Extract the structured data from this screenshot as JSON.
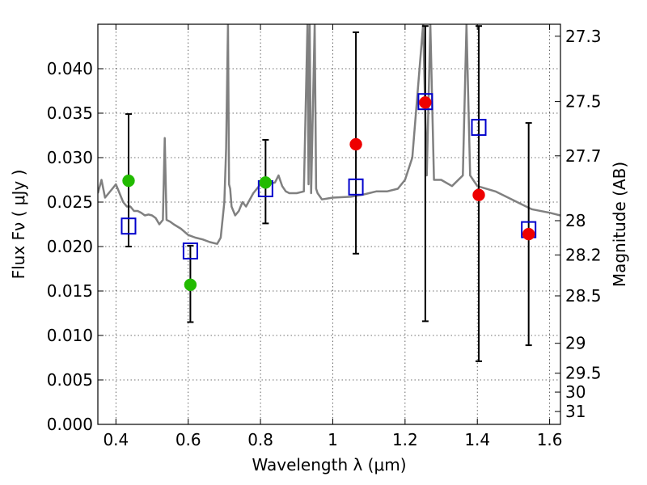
{
  "chart_data": {
    "type": "scatter",
    "xlabel": "Wavelength  λ (μm)",
    "ylabel": "Flux  Fν  ( μJy )",
    "ylabel_right": "Magnitude (AB)",
    "xlim": [
      0.35,
      1.63
    ],
    "ylim": [
      0.0,
      0.045
    ],
    "grid": true,
    "x_ticks": [
      0.4,
      0.6,
      0.8,
      1.0,
      1.2,
      1.4,
      1.6
    ],
    "x_tick_labels": [
      "0.4",
      "0.6",
      "0.8",
      "1",
      "1.2",
      "1.4",
      "1.6"
    ],
    "y_ticks": [
      0.0,
      0.005,
      0.01,
      0.015,
      0.02,
      0.025,
      0.03,
      0.035,
      0.04
    ],
    "y_tick_labels": [
      "0.000",
      "0.005",
      "0.010",
      "0.015",
      "0.020",
      "0.025",
      "0.030",
      "0.035",
      "0.040"
    ],
    "mag_tick_labels": [
      "27.3",
      "27.5",
      "27.7",
      "28",
      "28.2",
      "28.5",
      "29",
      "29.5",
      "30",
      "31"
    ],
    "mag_ticks": [
      27.3,
      27.5,
      27.7,
      28.0,
      28.2,
      28.5,
      29.0,
      29.5,
      30.0,
      31.0
    ],
    "series": [
      {
        "marker": "open-square",
        "color": "#0000cc",
        "x": [
          0.435,
          0.606,
          0.814,
          1.064,
          1.256,
          1.404,
          1.542
        ],
        "y": [
          0.0223,
          0.0195,
          0.0265,
          0.0267,
          0.0363,
          0.0334,
          0.0219
        ]
      },
      {
        "marker": "circle",
        "color": "#22bb00",
        "x": [
          0.435,
          0.606,
          0.814
        ],
        "y": [
          0.0274,
          0.0157,
          0.0272
        ],
        "yerr_low": [
          0.02,
          0.0115,
          0.0226
        ],
        "yerr_high": [
          0.0349,
          0.0201,
          0.032
        ]
      },
      {
        "marker": "circle",
        "color": "#ee0000",
        "x": [
          1.064,
          1.256,
          1.404,
          1.542
        ],
        "y": [
          0.0315,
          0.0362,
          0.0258,
          0.0214
        ],
        "yerr_low": [
          0.0192,
          0.0116,
          0.0071,
          0.0089
        ],
        "yerr_high": [
          0.0441,
          0.0448,
          0.0448,
          0.0339
        ]
      },
      {
        "marker": "line",
        "color": "#808080",
        "x": [
          0.35,
          0.36,
          0.37,
          0.38,
          0.39,
          0.4,
          0.41,
          0.42,
          0.43,
          0.44,
          0.45,
          0.46,
          0.47,
          0.48,
          0.49,
          0.5,
          0.51,
          0.52,
          0.53,
          0.535,
          0.54,
          0.55,
          0.56,
          0.58,
          0.6,
          0.62,
          0.64,
          0.66,
          0.68,
          0.69,
          0.7,
          0.705,
          0.71,
          0.713,
          0.716,
          0.72,
          0.73,
          0.74,
          0.75,
          0.76,
          0.78,
          0.8,
          0.82,
          0.84,
          0.85,
          0.86,
          0.87,
          0.88,
          0.9,
          0.92,
          0.93,
          0.933,
          0.936,
          0.94,
          0.95,
          0.954,
          0.958,
          0.97,
          1.0,
          1.05,
          1.08,
          1.1,
          1.12,
          1.15,
          1.18,
          1.2,
          1.22,
          1.25,
          1.26,
          1.27,
          1.28,
          1.3,
          1.33,
          1.36,
          1.37,
          1.38,
          1.4,
          1.45,
          1.5,
          1.55,
          1.6,
          1.63
        ],
        "y": [
          0.026,
          0.0275,
          0.0255,
          0.026,
          0.0265,
          0.027,
          0.026,
          0.025,
          0.0245,
          0.0245,
          0.024,
          0.024,
          0.0238,
          0.0235,
          0.0236,
          0.0235,
          0.0232,
          0.0225,
          0.023,
          0.0322,
          0.023,
          0.0228,
          0.0225,
          0.022,
          0.0213,
          0.021,
          0.0208,
          0.0205,
          0.0203,
          0.021,
          0.025,
          0.031,
          0.045,
          0.027,
          0.0265,
          0.0245,
          0.0235,
          0.024,
          0.025,
          0.0245,
          0.026,
          0.027,
          0.027,
          0.0272,
          0.028,
          0.0268,
          0.0262,
          0.026,
          0.026,
          0.0262,
          0.045,
          0.027,
          0.045,
          0.026,
          0.045,
          0.0265,
          0.026,
          0.0253,
          0.0255,
          0.0256,
          0.0258,
          0.026,
          0.0262,
          0.0262,
          0.0265,
          0.0275,
          0.03,
          0.045,
          0.028,
          0.045,
          0.0275,
          0.0275,
          0.0268,
          0.028,
          0.045,
          0.028,
          0.0268,
          0.0262,
          0.0252,
          0.0242,
          0.0238,
          0.0235
        ]
      }
    ]
  }
}
